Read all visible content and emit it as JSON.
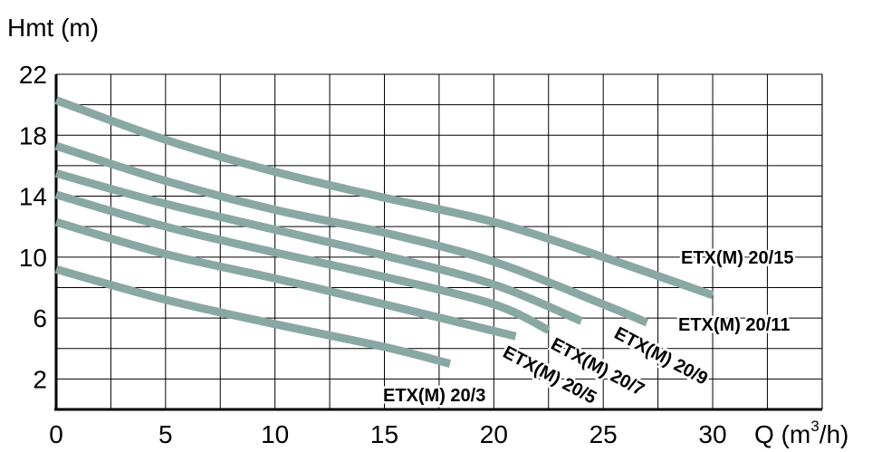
{
  "chart_data": {
    "type": "line",
    "ylabel": "Hmt (m)",
    "xlabel": "Q (m³/h)",
    "xlabel_prefix": "Q (m",
    "xlabel_sup": "3",
    "xlabel_suffix": "/h)",
    "xlim": [
      0,
      30
    ],
    "ylim": [
      0,
      22
    ],
    "x_ticks": [
      0,
      5,
      10,
      15,
      20,
      25,
      30
    ],
    "y_ticks": [
      2,
      6,
      10,
      14,
      18,
      22
    ],
    "grid": true,
    "line_color": "#8aa8a3",
    "series": [
      {
        "name": "ETX(M) 20/3",
        "points": [
          [
            0,
            9.2
          ],
          [
            5,
            7.2
          ],
          [
            10,
            5.6
          ],
          [
            15,
            4.1
          ],
          [
            18,
            3.0
          ]
        ]
      },
      {
        "name": "ETX(M) 20/5",
        "points": [
          [
            0,
            12.3
          ],
          [
            5,
            10.2
          ],
          [
            10,
            8.6
          ],
          [
            15,
            6.9
          ],
          [
            21,
            4.8
          ]
        ]
      },
      {
        "name": "ETX(M) 20/7",
        "points": [
          [
            0,
            14.1
          ],
          [
            5,
            12.0
          ],
          [
            10,
            10.3
          ],
          [
            15,
            8.7
          ],
          [
            20,
            6.9
          ],
          [
            22.5,
            5.2
          ]
        ]
      },
      {
        "name": "ETX(M) 20/9",
        "points": [
          [
            0,
            15.5
          ],
          [
            5,
            13.5
          ],
          [
            10,
            11.8
          ],
          [
            15,
            10.1
          ],
          [
            20,
            8.2
          ],
          [
            24,
            5.8
          ]
        ]
      },
      {
        "name": "ETX(M) 20/11",
        "points": [
          [
            0,
            17.3
          ],
          [
            5,
            15.0
          ],
          [
            10,
            13.1
          ],
          [
            15,
            11.6
          ],
          [
            20,
            9.7
          ],
          [
            25,
            6.9
          ],
          [
            27,
            5.7
          ]
        ]
      },
      {
        "name": "ETX(M) 20/15",
        "points": [
          [
            0,
            20.3
          ],
          [
            5,
            17.7
          ],
          [
            10,
            15.6
          ],
          [
            15,
            13.9
          ],
          [
            20,
            12.3
          ],
          [
            25,
            10.0
          ],
          [
            30,
            7.5
          ]
        ]
      }
    ]
  }
}
